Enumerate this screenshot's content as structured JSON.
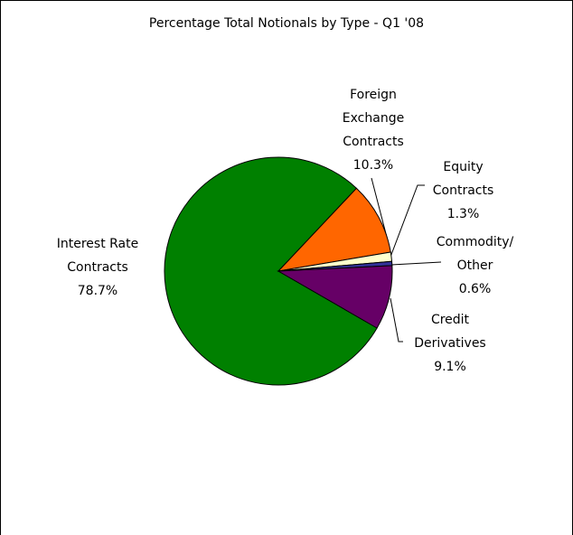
{
  "chart_data": {
    "type": "pie",
    "title": "Percentage Total Notionals by Type - Q1 '08",
    "categories": [
      "Interest Rate Contracts",
      "Foreign Exchange Contracts",
      "Equity Contracts",
      "Commodity/ Other",
      "Credit Derivatives"
    ],
    "values": [
      78.7,
      10.3,
      1.3,
      0.6,
      9.1
    ],
    "value_labels": [
      "78.7%",
      "10.3%",
      "1.3%",
      "0.6%",
      "9.1%"
    ],
    "colors": [
      "#008000",
      "#ff6600",
      "#ffffcc",
      "#333399",
      "#660066"
    ]
  }
}
